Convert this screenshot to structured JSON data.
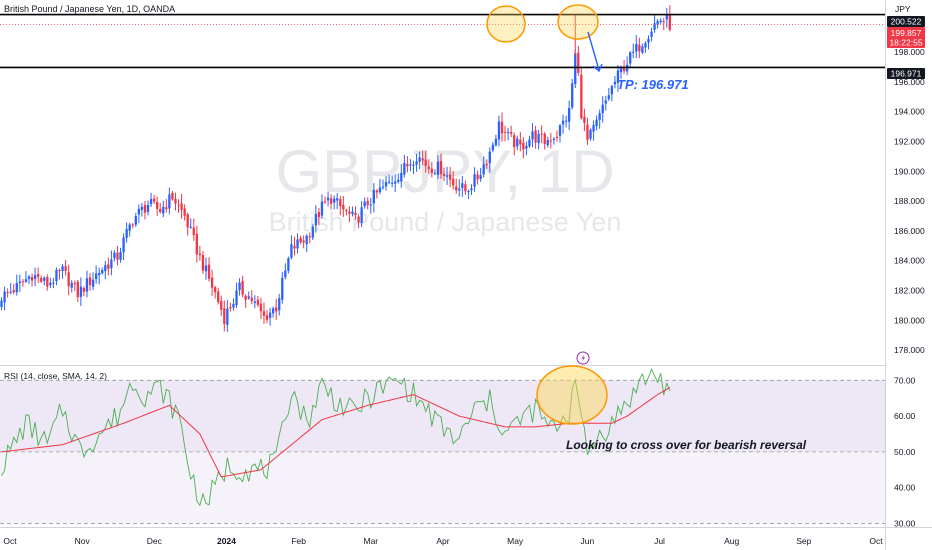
{
  "header": {
    "symbol_title": "British Pound / Japanese Yen, 1D, OANDA",
    "currency": "JPY"
  },
  "watermark": {
    "ticker": "GBPJPY, 1D",
    "name": "British Pound / Japanese Yen"
  },
  "price_badges": {
    "resistance": "200.522",
    "last_price": "199.857",
    "countdown": "18:22:55",
    "target": "196.971"
  },
  "annotations": {
    "target_label": "TP: 196.971",
    "rsi_note": "Looking to cross over for bearish reversal"
  },
  "rsi_panel": {
    "title": "RSI (14, close, SMA, 14, 2)"
  },
  "colors": {
    "bull": "#2962ff",
    "bear": "#f23645",
    "rsi_line": "#4caf50",
    "rsi_ma": "#f23645",
    "rsi_band": "#ede7f6",
    "highlight": "#ff9800",
    "highlight_fill": "#ffd54f",
    "annotation": "#2962ff",
    "level_line": "#000000"
  },
  "chart_data": [
    {
      "type": "candlestick",
      "title": "British Pound / Japanese Yen, 1D, OANDA",
      "ylabel": "JPY",
      "ylim": [
        177,
        201.5
      ],
      "y_ticks": [
        178,
        180,
        182,
        184,
        186,
        188,
        190,
        192,
        194,
        196,
        198
      ],
      "x_tick_labels": [
        "Oct",
        "Nov",
        "Dec",
        "2024",
        "Feb",
        "Mar",
        "Apr",
        "May",
        "Jun",
        "Jul",
        "Aug",
        "Sep",
        "Oct"
      ],
      "grid": false,
      "horizontal_levels": [
        200.522,
        196.971
      ],
      "last_price": 199.857,
      "take_profit": 196.971,
      "close_anchors": [
        [
          0,
          181.6
        ],
        [
          5,
          182.2
        ],
        [
          10,
          183.1
        ],
        [
          15,
          182.4
        ],
        [
          20,
          183.3
        ],
        [
          25,
          181.8
        ],
        [
          32,
          183.3
        ],
        [
          38,
          184.3
        ],
        [
          43,
          186.8
        ],
        [
          48,
          187.8
        ],
        [
          52,
          187.4
        ],
        [
          56,
          188.3
        ],
        [
          60,
          187.0
        ],
        [
          65,
          184.2
        ],
        [
          70,
          181.8
        ],
        [
          73,
          180.2
        ],
        [
          78,
          182.1
        ],
        [
          82,
          181.4
        ],
        [
          86,
          180.2
        ],
        [
          90,
          180.9
        ],
        [
          95,
          184.8
        ],
        [
          100,
          185.6
        ],
        [
          105,
          187.6
        ],
        [
          108,
          188.2
        ],
        [
          112,
          187.4
        ],
        [
          116,
          186.7
        ],
        [
          120,
          187.9
        ],
        [
          124,
          188.7
        ],
        [
          128,
          189.4
        ],
        [
          132,
          190.2
        ],
        [
          136,
          191.1
        ],
        [
          140,
          190.3
        ],
        [
          144,
          190.2
        ],
        [
          148,
          189.2
        ],
        [
          152,
          188.7
        ],
        [
          156,
          189.6
        ],
        [
          160,
          191.3
        ],
        [
          163,
          193.1
        ],
        [
          166,
          192.3
        ],
        [
          170,
          191.6
        ],
        [
          174,
          192.4
        ],
        [
          178,
          192.0
        ],
        [
          182,
          192.5
        ],
        [
          186,
          194.0
        ],
        [
          188,
          197.8
        ],
        [
          189,
          196.4
        ],
        [
          190,
          194.0
        ],
        [
          192,
          192.0
        ],
        [
          195,
          193.2
        ],
        [
          199,
          195.2
        ],
        [
          203,
          196.8
        ],
        [
          207,
          197.9
        ],
        [
          211,
          199.0
        ],
        [
          214,
          199.9
        ],
        [
          216,
          200.2
        ],
        [
          218,
          200.1
        ],
        [
          219,
          199.86
        ]
      ]
    },
    {
      "type": "line",
      "title": "RSI (14, close, SMA, 14, 2)",
      "ylim": [
        29,
        74
      ],
      "y_ticks": [
        30,
        40,
        50,
        60,
        70
      ],
      "band": [
        50,
        70
      ],
      "reference_lines": [
        70,
        50,
        30
      ],
      "series": [
        {
          "name": "RSI",
          "anchors": [
            [
              0,
              46
            ],
            [
              8,
              58
            ],
            [
              15,
              52
            ],
            [
              20,
              62
            ],
            [
              26,
              50
            ],
            [
              32,
              55
            ],
            [
              38,
              60
            ],
            [
              43,
              70
            ],
            [
              47,
              66
            ],
            [
              52,
              68
            ],
            [
              58,
              60
            ],
            [
              62,
              44
            ],
            [
              66,
              35
            ],
            [
              70,
              40
            ],
            [
              74,
              46
            ],
            [
              80,
              45
            ],
            [
              86,
              45
            ],
            [
              90,
              47
            ],
            [
              95,
              68
            ],
            [
              100,
              58
            ],
            [
              105,
              69
            ],
            [
              110,
              64
            ],
            [
              115,
              61
            ],
            [
              120,
              65
            ],
            [
              125,
              68
            ],
            [
              130,
              70
            ],
            [
              135,
              66
            ],
            [
              140,
              61
            ],
            [
              145,
              56
            ],
            [
              150,
              53
            ],
            [
              155,
              62
            ],
            [
              160,
              64
            ],
            [
              165,
              55
            ],
            [
              170,
              59
            ],
            [
              175,
              62
            ],
            [
              180,
              56
            ],
            [
              186,
              61
            ],
            [
              188,
              73
            ],
            [
              190,
              58
            ],
            [
              192,
              49
            ],
            [
              195,
              54
            ],
            [
              200,
              58
            ],
            [
              205,
              64
            ],
            [
              210,
              70
            ],
            [
              214,
              72
            ],
            [
              217,
              69
            ],
            [
              219,
              67
            ]
          ]
        },
        {
          "name": "RSI-based MA",
          "anchors": [
            [
              0,
              50
            ],
            [
              20,
              52
            ],
            [
              40,
              58
            ],
            [
              55,
              63
            ],
            [
              65,
              55
            ],
            [
              72,
              43
            ],
            [
              85,
              45
            ],
            [
              95,
              52
            ],
            [
              105,
              59
            ],
            [
              120,
              63
            ],
            [
              135,
              66
            ],
            [
              150,
              60
            ],
            [
              165,
              57
            ],
            [
              175,
              57
            ],
            [
              186,
              58
            ],
            [
              192,
              58
            ],
            [
              200,
              58
            ],
            [
              205,
              60
            ],
            [
              210,
              63
            ],
            [
              215,
              66
            ],
            [
              219,
              68
            ]
          ]
        }
      ]
    }
  ]
}
